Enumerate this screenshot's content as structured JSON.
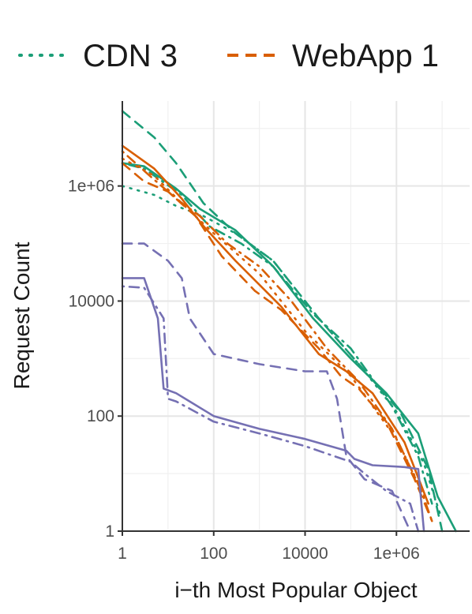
{
  "chart_data": {
    "type": "line",
    "title": "",
    "xlabel": "i−th Most Popular Object",
    "ylabel": "Request Count",
    "x_scale": "log10",
    "y_scale": "log10",
    "xlim": [
      1,
      40000000
    ],
    "ylim": [
      1,
      30000000
    ],
    "x_ticks": [
      {
        "value": 1,
        "label": "1"
      },
      {
        "value": 100,
        "label": "100"
      },
      {
        "value": 10000,
        "label": "10000"
      },
      {
        "value": 1000000,
        "label": "1e+06"
      }
    ],
    "y_ticks": [
      {
        "value": 1,
        "label": "1"
      },
      {
        "value": 100,
        "label": "100"
      },
      {
        "value": 10000,
        "label": "10000"
      },
      {
        "value": 1000000,
        "label": "1e+06"
      }
    ],
    "grid": true,
    "legend": {
      "position": "top",
      "entries": [
        {
          "label": "CDN 3",
          "color": "#1b9e77",
          "dash": "dotted"
        },
        {
          "label": "WebApp 1",
          "color": "#d95f02",
          "dash": "dashed"
        }
      ]
    },
    "series": [
      {
        "color": "#1b9e77",
        "dash": "solid",
        "points": [
          [
            1,
            2500000
          ],
          [
            3,
            2200000
          ],
          [
            15,
            900000
          ],
          [
            50,
            400000
          ],
          [
            300,
            170000
          ],
          [
            2000,
            40000
          ],
          [
            15000,
            5000
          ],
          [
            100000,
            1000
          ],
          [
            600000,
            250
          ],
          [
            3000000,
            50
          ],
          [
            8000000,
            4
          ],
          [
            20000000,
            1
          ]
        ]
      },
      {
        "color": "#1b9e77",
        "dash": "dashed",
        "points": [
          [
            1,
            20000000
          ],
          [
            5,
            7000000
          ],
          [
            15,
            2500000
          ],
          [
            60,
            500000
          ],
          [
            300,
            150000
          ],
          [
            2000,
            50000
          ],
          [
            20000,
            5000
          ],
          [
            150000,
            800
          ],
          [
            1200000,
            120
          ],
          [
            5000000,
            12
          ],
          [
            10000000,
            1
          ]
        ]
      },
      {
        "color": "#1b9e77",
        "dash": "dotted",
        "points": [
          [
            1,
            1000000
          ],
          [
            5,
            700000
          ],
          [
            15,
            450000
          ],
          [
            60,
            300000
          ],
          [
            300,
            150000
          ],
          [
            2000,
            50000
          ],
          [
            20000,
            5000
          ],
          [
            150000,
            800
          ],
          [
            1000000,
            120
          ],
          [
            4000000,
            15
          ],
          [
            9000000,
            2
          ]
        ]
      },
      {
        "color": "#1b9e77",
        "dash": "dotdash",
        "points": [
          [
            1,
            2500000
          ],
          [
            3,
            2000000
          ],
          [
            20,
            700000
          ],
          [
            80,
            200000
          ],
          [
            400,
            100000
          ],
          [
            2000,
            40000
          ],
          [
            15000,
            6000
          ],
          [
            100000,
            1500
          ],
          [
            800000,
            150
          ],
          [
            3000000,
            20
          ],
          [
            6000000,
            3
          ]
        ]
      },
      {
        "color": "#d95f02",
        "dash": "solid",
        "points": [
          [
            1,
            5000000
          ],
          [
            5,
            2000000
          ],
          [
            20,
            600000
          ],
          [
            60,
            200000
          ],
          [
            300,
            50000
          ],
          [
            3000,
            8000
          ],
          [
            20000,
            1200
          ],
          [
            80000,
            600
          ],
          [
            300000,
            250
          ],
          [
            1500000,
            35
          ],
          [
            5000000,
            3
          ]
        ]
      },
      {
        "color": "#d95f02",
        "dash": "dashed",
        "points": [
          [
            1,
            2500000
          ],
          [
            3,
            1200000
          ],
          [
            10,
            800000
          ],
          [
            40,
            300000
          ],
          [
            150,
            60000
          ],
          [
            800,
            15000
          ],
          [
            3000,
            7000
          ],
          [
            20000,
            1500
          ],
          [
            60000,
            500
          ],
          [
            150000,
            300
          ],
          [
            600000,
            80
          ],
          [
            2500000,
            8
          ],
          [
            6000000,
            1.5
          ]
        ]
      },
      {
        "color": "#d95f02",
        "dash": "dotted",
        "points": [
          [
            1,
            3000000
          ],
          [
            5,
            1500000
          ],
          [
            20,
            500000
          ],
          [
            100,
            150000
          ],
          [
            1000,
            30000
          ],
          [
            10000,
            3000
          ],
          [
            100000,
            500
          ],
          [
            1000000,
            40
          ],
          [
            5000000,
            3
          ]
        ]
      },
      {
        "color": "#d95f02",
        "dash": "dotdash",
        "points": [
          [
            1,
            4000000
          ],
          [
            4,
            1500000
          ],
          [
            15,
            600000
          ],
          [
            50,
            300000
          ],
          [
            200,
            100000
          ],
          [
            1000,
            40000
          ],
          [
            5000,
            10000
          ],
          [
            30000,
            1500
          ],
          [
            150000,
            400
          ],
          [
            800000,
            60
          ],
          [
            3500000,
            5
          ],
          [
            6000000,
            1.5
          ]
        ]
      },
      {
        "color": "#7570b3",
        "dash": "solid",
        "points": [
          [
            1,
            25000
          ],
          [
            3,
            25000
          ],
          [
            6,
            5000
          ],
          [
            8,
            300
          ],
          [
            15,
            250
          ],
          [
            100,
            100
          ],
          [
            1000,
            60
          ],
          [
            10000,
            40
          ],
          [
            80000,
            25
          ],
          [
            120000,
            18
          ],
          [
            300000,
            14
          ],
          [
            1500000,
            13
          ],
          [
            3000000,
            12
          ],
          [
            4000000,
            1
          ]
        ]
      },
      {
        "color": "#7570b3",
        "dash": "dashed",
        "points": [
          [
            1,
            100000
          ],
          [
            3,
            100000
          ],
          [
            10,
            50000
          ],
          [
            20,
            25000
          ],
          [
            30,
            5000
          ],
          [
            100,
            1200
          ],
          [
            1000,
            800
          ],
          [
            10000,
            600
          ],
          [
            30000,
            600
          ],
          [
            50000,
            200
          ],
          [
            80000,
            20
          ],
          [
            200000,
            8
          ],
          [
            800000,
            5
          ],
          [
            2000000,
            1
          ]
        ]
      },
      {
        "color": "#7570b3",
        "dash": "dotdash",
        "points": [
          [
            1,
            18000
          ],
          [
            3,
            17000
          ],
          [
            8,
            5000
          ],
          [
            10,
            200
          ],
          [
            15,
            180
          ],
          [
            100,
            80
          ],
          [
            1000,
            50
          ],
          [
            10000,
            30
          ],
          [
            100000,
            16
          ],
          [
            200000,
            10
          ],
          [
            600000,
            5
          ],
          [
            2000000,
            3
          ],
          [
            3000000,
            1
          ]
        ]
      }
    ]
  }
}
